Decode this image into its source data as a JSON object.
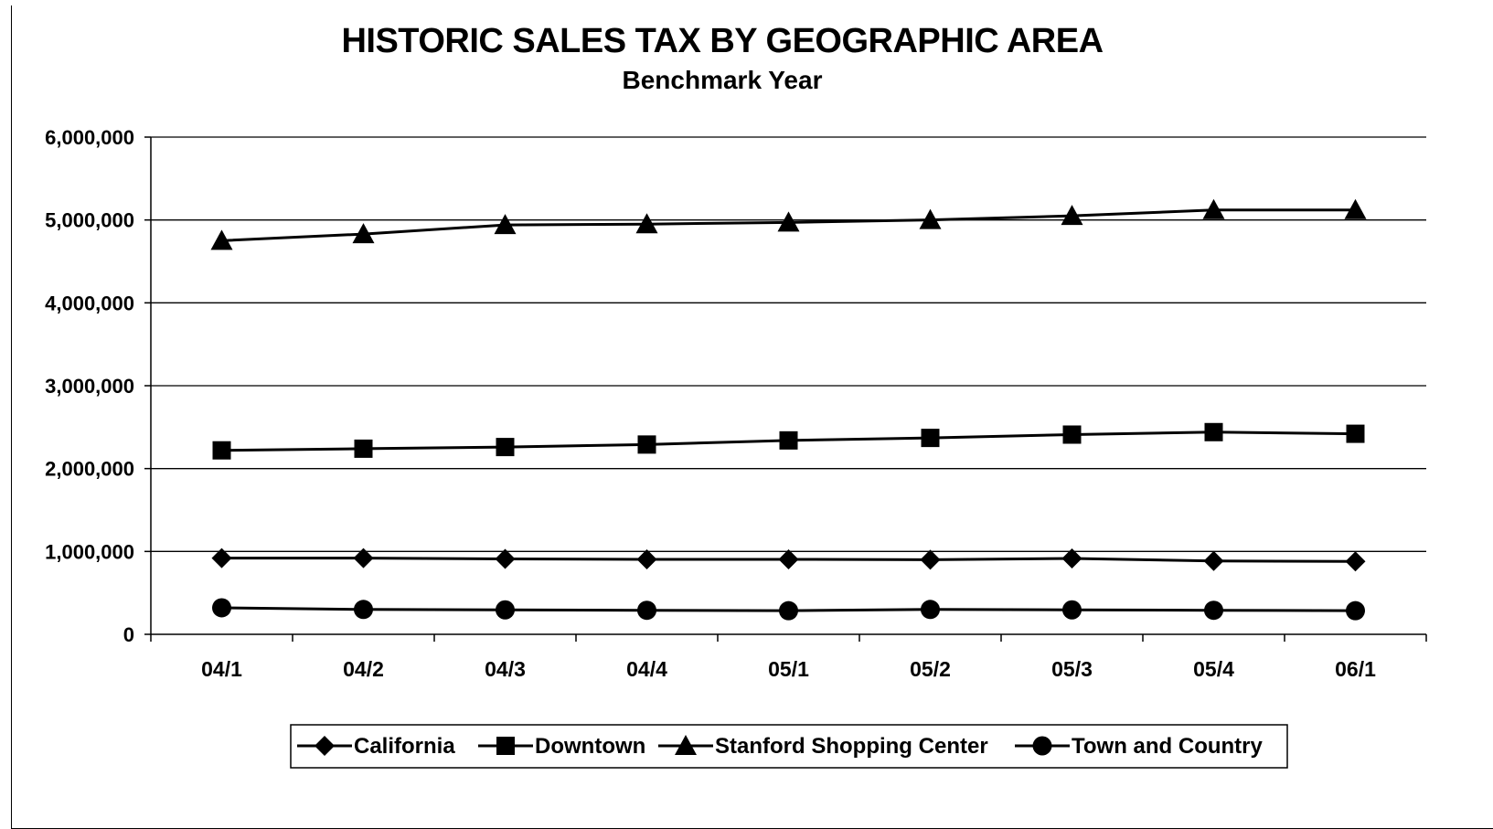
{
  "chart_data": {
    "type": "line",
    "title": "HISTORIC SALES TAX BY GEOGRAPHIC AREA",
    "subtitle": "Benchmark Year",
    "xlabel": "",
    "ylabel": "",
    "categories": [
      "04/1",
      "04/2",
      "04/3",
      "04/4",
      "05/1",
      "05/2",
      "05/3",
      "05/4",
      "06/1"
    ],
    "ylim": [
      0,
      6000000
    ],
    "yticks": [
      0,
      1000000,
      2000000,
      3000000,
      4000000,
      5000000,
      6000000
    ],
    "ytick_labels": [
      "0",
      "1,000,000",
      "2,000,000",
      "3,000,000",
      "4,000,000",
      "5,000,000",
      "6,000,000"
    ],
    "grid": true,
    "legend_position": "bottom",
    "series": [
      {
        "name": "California",
        "marker": "diamond",
        "values": [
          920000,
          920000,
          910000,
          905000,
          905000,
          900000,
          915000,
          885000,
          880000
        ]
      },
      {
        "name": "Downtown",
        "marker": "square",
        "values": [
          2220000,
          2240000,
          2260000,
          2290000,
          2340000,
          2370000,
          2410000,
          2440000,
          2420000
        ]
      },
      {
        "name": "Stanford Shopping Center",
        "marker": "triangle",
        "values": [
          4750000,
          4830000,
          4940000,
          4950000,
          4970000,
          5000000,
          5050000,
          5120000,
          5120000
        ]
      },
      {
        "name": "Town and Country",
        "marker": "circle",
        "values": [
          320000,
          300000,
          295000,
          290000,
          285000,
          300000,
          295000,
          290000,
          285000
        ]
      }
    ],
    "colors": {
      "line": "#000000",
      "grid": "#000000"
    }
  }
}
